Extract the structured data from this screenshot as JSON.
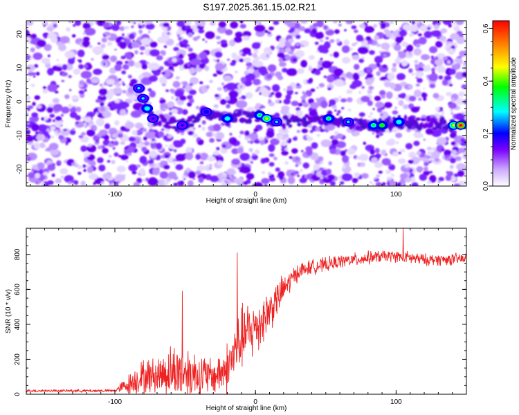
{
  "title": "S197.2025.361.15.02.R21",
  "chart_data": [
    {
      "type": "heatmap",
      "xlabel": "Height of straight line (km)",
      "ylabel": "Frequency (Hz)",
      "xlim": [
        -163,
        150
      ],
      "ylim": [
        -25,
        24
      ],
      "xticks": [
        -100,
        0,
        100
      ],
      "yticks": [
        20,
        10,
        0,
        -10,
        -20
      ],
      "colorbar": {
        "label": "Normalized spectral amplitude",
        "range": [
          0.0,
          0.63
        ],
        "ticks": [
          0.0,
          0.2,
          0.4,
          0.6
        ],
        "colormap": "rainbow",
        "colors": [
          "#ffffff",
          "#ccaaff",
          "#7a00ff",
          "#0000ff",
          "#00ffff",
          "#00ff00",
          "#ffff00",
          "#ff8800",
          "#ff0000"
        ]
      },
      "ridge": [
        {
          "x": -83,
          "y": 4,
          "amp": 0.25
        },
        {
          "x": -80,
          "y": 1,
          "amp": 0.22
        },
        {
          "x": -77,
          "y": -2,
          "amp": 0.28
        },
        {
          "x": -73,
          "y": -5,
          "amp": 0.15
        },
        {
          "x": -52,
          "y": -7,
          "amp": 0.16
        },
        {
          "x": -35,
          "y": -3,
          "amp": 0.18
        },
        {
          "x": -20,
          "y": -5,
          "amp": 0.26
        },
        {
          "x": 3,
          "y": -4,
          "amp": 0.3
        },
        {
          "x": 8,
          "y": -5,
          "amp": 0.38
        },
        {
          "x": 15,
          "y": -6,
          "amp": 0.25
        },
        {
          "x": 52,
          "y": -5,
          "amp": 0.32
        },
        {
          "x": 66,
          "y": -6,
          "amp": 0.25
        },
        {
          "x": 84,
          "y": -7,
          "amp": 0.33
        },
        {
          "x": 90,
          "y": -7,
          "amp": 0.36
        },
        {
          "x": 102,
          "y": -6,
          "amp": 0.28
        },
        {
          "x": 141,
          "y": -7,
          "amp": 0.45
        },
        {
          "x": 146,
          "y": -7,
          "amp": 0.62
        }
      ]
    },
    {
      "type": "line",
      "xlabel": "Height of straight line (km)",
      "ylabel": "SNR (10 * v/v)",
      "xlim": [
        -163,
        150
      ],
      "ylim": [
        0,
        950
      ],
      "xticks": [
        -100,
        0,
        100
      ],
      "yticks": [
        0,
        200,
        400,
        600,
        800
      ],
      "color": "#ee2222",
      "series": [
        {
          "name": "SNR",
          "envelope": {
            "x": [
              -163,
              -100,
              -90,
              -80,
              -70,
              -60,
              -50,
              -40,
              -30,
              -20,
              -10,
              0,
              10,
              20,
              30,
              40,
              50,
              60,
              70,
              80,
              90,
              100,
              110,
              120,
              130,
              150
            ],
            "mean": [
              20,
              20,
              60,
              100,
              110,
              130,
              130,
              110,
              100,
              150,
              320,
              380,
              480,
              600,
              700,
              730,
              740,
              760,
              770,
              780,
              790,
              790,
              780,
              770,
              770,
              775
            ],
            "spread": [
              8,
              10,
              70,
              120,
              120,
              180,
              190,
              160,
              120,
              180,
              220,
              200,
              150,
              100,
              60,
              50,
              50,
              45,
              45,
              45,
              40,
              40,
              45,
              40,
              40,
              40
            ]
          },
          "peaks": [
            {
              "x": -52,
              "y": 590
            },
            {
              "x": -13,
              "y": 810
            },
            {
              "x": 105,
              "y": 950
            }
          ]
        }
      ]
    }
  ]
}
